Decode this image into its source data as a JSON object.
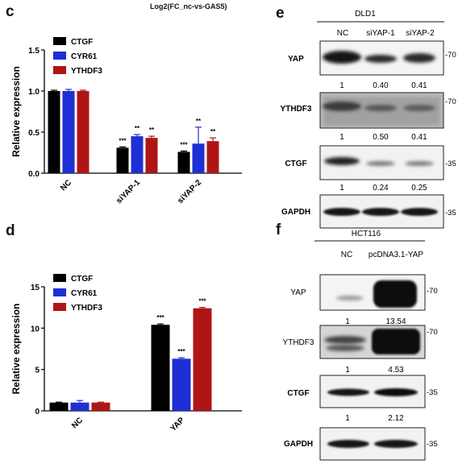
{
  "header": {
    "caption": "Log2(FC_nc-vs-GAS5)"
  },
  "panels": {
    "c": "c",
    "d": "d",
    "e": "e",
    "f": "f"
  },
  "colors": {
    "CTGF": "#000000",
    "CYR61": "#1f2fd6",
    "YTHDF3": "#b01515"
  },
  "chart_data": [
    {
      "panel": "c",
      "type": "bar",
      "categories": [
        "NC",
        "siYAP-1",
        "siYAP-2"
      ],
      "series": [
        {
          "name": "CTGF",
          "values": [
            1.0,
            0.31,
            0.26
          ],
          "errors": [
            0.01,
            0.01,
            0.01
          ],
          "sig": [
            "",
            "***",
            "***"
          ]
        },
        {
          "name": "CYR61",
          "values": [
            1.0,
            0.45,
            0.36
          ],
          "errors": [
            0.02,
            0.02,
            0.2
          ],
          "sig": [
            "",
            "**",
            "**"
          ]
        },
        {
          "name": "YTHDF3",
          "values": [
            1.0,
            0.43,
            0.39
          ],
          "errors": [
            0.01,
            0.02,
            0.04
          ],
          "sig": [
            "",
            "**",
            "**"
          ]
        }
      ],
      "ylabel": "Relative expression",
      "ylim": [
        0,
        1.5
      ],
      "yticks": [
        "0.0",
        "0.5",
        "1.0",
        "1.5"
      ],
      "legend": "top-left"
    },
    {
      "panel": "d",
      "type": "bar",
      "categories": [
        "NC",
        "YAP"
      ],
      "series": [
        {
          "name": "CTGF",
          "values": [
            1.0,
            10.4
          ],
          "errors": [
            0.05,
            0.1
          ],
          "sig": [
            "",
            "***"
          ]
        },
        {
          "name": "CYR61",
          "values": [
            1.0,
            6.3
          ],
          "errors": [
            0.25,
            0.12
          ],
          "sig": [
            "",
            "***"
          ]
        },
        {
          "name": "YTHDF3",
          "values": [
            1.0,
            12.4
          ],
          "errors": [
            0.05,
            0.1
          ],
          "sig": [
            "",
            "***"
          ]
        }
      ],
      "ylabel": "Relative expression",
      "ylim": [
        0,
        15
      ],
      "yticks": [
        "0",
        "5",
        "10",
        "15"
      ],
      "legend": "top-left"
    }
  ],
  "blot_e": {
    "cell_line": "DLD1",
    "lanes": [
      "NC",
      "siYAP-1",
      "siYAP-2"
    ],
    "rows": [
      {
        "label": "YAP",
        "mw": "-70",
        "quant": [
          "1",
          "0.40",
          "0.41"
        ]
      },
      {
        "label": "YTHDF3",
        "mw": "-70",
        "quant": [
          "1",
          "0.50",
          "0.41"
        ]
      },
      {
        "label": "CTGF",
        "mw": "-35",
        "quant": [
          "1",
          "0.24",
          "0.25"
        ]
      },
      {
        "label": "GAPDH",
        "mw": "-35"
      }
    ]
  },
  "blot_f": {
    "cell_line": "HCT116",
    "lanes": [
      "NC",
      "pcDNA3.1-YAP"
    ],
    "rows": [
      {
        "label": "YAP",
        "mw": "-70",
        "quant": [
          "1",
          "13.54"
        ]
      },
      {
        "label": "YTHDF3",
        "mw": "-70",
        "quant": [
          "1",
          "4.53"
        ]
      },
      {
        "label": "CTGF",
        "mw": "-35",
        "quant": [
          "1",
          "2.12"
        ]
      },
      {
        "label": "GAPDH",
        "mw": "-35"
      }
    ]
  }
}
